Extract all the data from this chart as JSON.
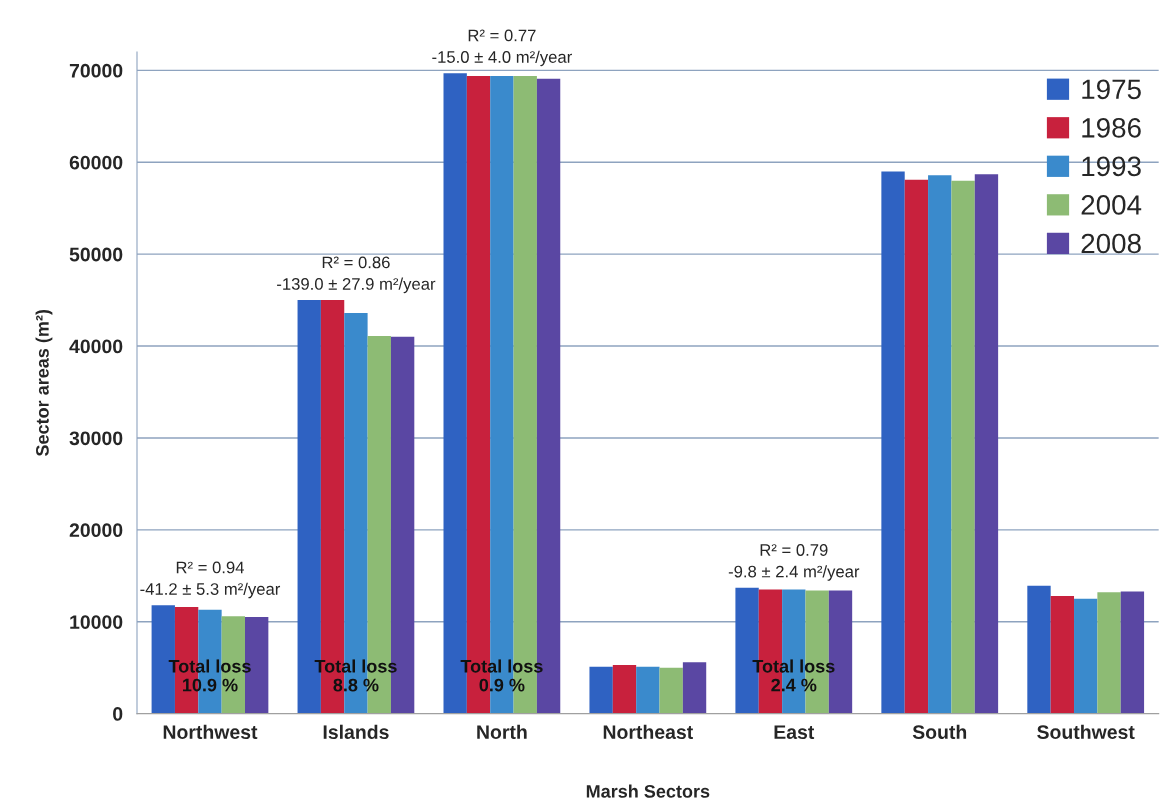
{
  "chart_data": {
    "type": "bar",
    "xlabel": "Marsh Sectors",
    "ylabel": "Sector areas (m²)",
    "categories": [
      "Northwest",
      "Islands",
      "North",
      "Northeast",
      "East",
      "South",
      "Southwest"
    ],
    "series": [
      {
        "name": "1975",
        "color": "#2f62c2",
        "values": [
          11800,
          45000,
          69700,
          5100,
          13700,
          59000,
          13900
        ]
      },
      {
        "name": "1986",
        "color": "#c8213d",
        "values": [
          11600,
          45000,
          69400,
          5300,
          13500,
          58100,
          12800
        ]
      },
      {
        "name": "1993",
        "color": "#3a8acc",
        "values": [
          11300,
          43600,
          69400,
          5100,
          13500,
          58600,
          12500
        ]
      },
      {
        "name": "2004",
        "color": "#8dbb74",
        "values": [
          10600,
          41100,
          69400,
          5000,
          13400,
          58000,
          13200
        ]
      },
      {
        "name": "2008",
        "color": "#5a47a3",
        "values": [
          10500,
          41000,
          69100,
          5600,
          13400,
          58700,
          13300
        ]
      }
    ],
    "ylim": [
      0,
      72000
    ],
    "yticks": [
      0,
      10000,
      20000,
      30000,
      40000,
      50000,
      60000,
      70000
    ],
    "grid": "y",
    "legend": "top right",
    "annotations": [
      {
        "text": "R² = 0.94\n-41.2 ± 5.3 m²/year",
        "x": "Northwest",
        "y": 11300
      },
      {
        "text": "R² = 0.86\n-139.0 ± 27.9 m²/year",
        "x": "Islands",
        "y": 43600
      },
      {
        "text": "R² = 0.77\n-15.0 ± 4.0 m²/year",
        "x": "North",
        "y": 69400
      },
      {
        "text": "R² = 0.79\n-9.8 ± 2.4 m²/year",
        "x": "East",
        "y": 13500
      },
      "Total loss\n10.9 %",
      "Total loss\n8.8 %",
      "Total loss\n0.9 %",
      "Total loss\n2.4 %"
    ]
  }
}
